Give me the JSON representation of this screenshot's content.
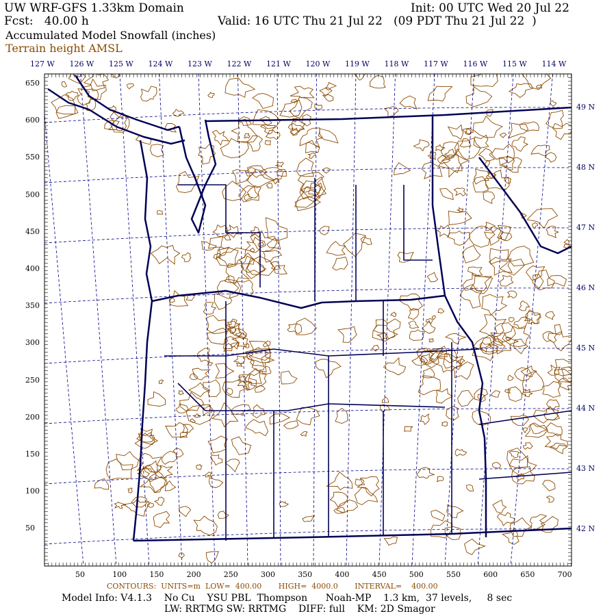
{
  "header": {
    "title": "UW WRF-GFS 1.33km Domain",
    "init": "Init: 00 UTC Wed 20 Jul 22",
    "fcst": "Fcst:   40.00 h",
    "valid": "Valid: 16 UTC Thu 21 Jul 22   (09 PDT Thu 21 Jul 22  )",
    "field": "Accumulated Model Snowfall (inches)",
    "overlay": "Terrain height AMSL"
  },
  "map": {
    "lon_labels": [
      "127 W",
      "126 W",
      "125 W",
      "124 W",
      "123 W",
      "122 W",
      "121 W",
      "120 W",
      "119 W",
      "118 W",
      "117 W",
      "116 W",
      "115 W",
      "114 W"
    ],
    "lat_labels": [
      "49 N",
      "48 N",
      "47 N",
      "46 N",
      "45 N",
      "44 N",
      "43 N",
      "42 N"
    ],
    "x_ticks": [
      "50",
      "100",
      "150",
      "200",
      "250",
      "300",
      "350",
      "400",
      "450",
      "500",
      "550",
      "600",
      "650",
      "700"
    ],
    "y_ticks": [
      "650",
      "600",
      "550",
      "500",
      "450",
      "400",
      "350",
      "300",
      "250",
      "200",
      "150",
      "100",
      "50"
    ],
    "colors": {
      "border": "#000055",
      "contour": "#8b4a00",
      "grid": "#000088"
    }
  },
  "footer": {
    "contours": "CONTOURS:  UNITS=m  LOW=  400.00       HIGH=  4000.0       INTERVAL=    400.00",
    "model_info": "Model Info: V4.1.3    No Cu    YSU PBL  Thompson      Noah-MP    1.3 km,  37 levels,     8 sec",
    "physics": "LW: RRTMG SW: RRTMG    DIFF: full    KM: 2D Smagor"
  }
}
